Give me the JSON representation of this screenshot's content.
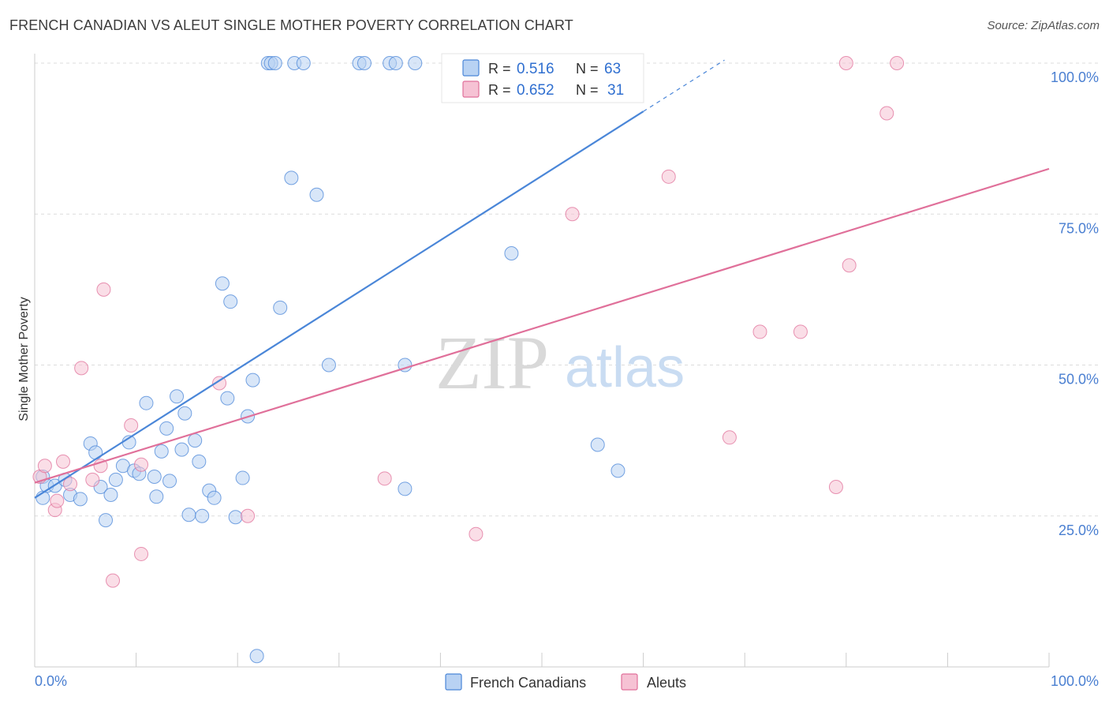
{
  "title": "FRENCH CANADIAN VS ALEUT SINGLE MOTHER POVERTY CORRELATION CHART",
  "source": "Source: ZipAtlas.com",
  "watermark": {
    "zip": "ZIP",
    "atlas": "atlas"
  },
  "colors": {
    "blue": "#4a86d8",
    "blue_fill": "#b8d2f3",
    "pink": "#e0709a",
    "pink_fill": "#f6c2d4",
    "tick_label": "#4a7fd1"
  },
  "chart_data": {
    "type": "scatter",
    "title": "FRENCH CANADIAN VS ALEUT SINGLE MOTHER POVERTY CORRELATION CHART",
    "xlabel": "",
    "ylabel": "Single Mother Poverty",
    "xlim": [
      0,
      100
    ],
    "ylim": [
      0,
      100
    ],
    "x_tick_labels": [
      "0.0%",
      "100.0%"
    ],
    "y_ticks": [
      25,
      50,
      75,
      100
    ],
    "y_tick_labels": [
      "25.0%",
      "50.0%",
      "75.0%",
      "100.0%"
    ],
    "grid": true,
    "legend_placement": "top-center",
    "legend": [
      {
        "r_label": "R =",
        "r_value": "0.516",
        "n_label": "N =",
        "n_value": "63"
      },
      {
        "r_label": "R =",
        "r_value": "0.652",
        "n_label": "N =",
        "n_value": "31"
      }
    ],
    "series": [
      {
        "name": "French Canadians",
        "color": "#4a86d8",
        "trendline": {
          "x0": 0,
          "y0": 28,
          "x1": 60,
          "y1": 92,
          "dashed_to_x": 68,
          "dashed_to_y": 100.5
        },
        "points": [
          [
            0.8,
            31.5
          ],
          [
            0.8,
            28
          ],
          [
            1.2,
            30
          ],
          [
            2,
            30
          ],
          [
            3,
            31
          ],
          [
            3.5,
            28.5
          ],
          [
            4.5,
            27.8
          ],
          [
            5.5,
            37
          ],
          [
            6,
            35.5
          ],
          [
            6.5,
            29.8
          ],
          [
            7,
            24.3
          ],
          [
            7.5,
            28.5
          ],
          [
            8,
            31
          ],
          [
            8.7,
            33.3
          ],
          [
            9.3,
            37.2
          ],
          [
            9.8,
            32.5
          ],
          [
            10.3,
            32
          ],
          [
            11,
            43.7
          ],
          [
            11.8,
            31.5
          ],
          [
            12,
            28.2
          ],
          [
            12.5,
            35.7
          ],
          [
            13,
            39.5
          ],
          [
            13.3,
            30.8
          ],
          [
            14,
            44.8
          ],
          [
            14.8,
            42
          ],
          [
            14.5,
            36
          ],
          [
            15.2,
            25.2
          ],
          [
            15.8,
            37.5
          ],
          [
            16.5,
            25
          ],
          [
            16.2,
            34
          ],
          [
            17.2,
            29.2
          ],
          [
            17.7,
            28
          ],
          [
            18.5,
            63.5
          ],
          [
            19,
            44.5
          ],
          [
            19.3,
            60.5
          ],
          [
            19.8,
            24.8
          ],
          [
            20.5,
            31.3
          ],
          [
            21,
            41.5
          ],
          [
            21.5,
            47.5
          ],
          [
            21.9,
            1.8
          ],
          [
            23,
            100
          ],
          [
            23.3,
            100
          ],
          [
            23.7,
            100
          ],
          [
            24.2,
            59.5
          ],
          [
            25.3,
            81
          ],
          [
            25.6,
            100
          ],
          [
            26.5,
            100
          ],
          [
            27.8,
            78.2
          ],
          [
            29,
            50
          ],
          [
            32,
            100
          ],
          [
            32.5,
            100
          ],
          [
            35,
            100
          ],
          [
            35.6,
            100
          ],
          [
            36.5,
            50
          ],
          [
            36.5,
            29.5
          ],
          [
            37.5,
            100
          ],
          [
            47,
            68.5
          ],
          [
            55.5,
            36.8
          ],
          [
            57.5,
            32.5
          ]
        ]
      },
      {
        "name": "Aleuts",
        "color": "#e0709a",
        "trendline": {
          "x0": 0,
          "y0": 30.5,
          "x1": 100,
          "y1": 82.5
        },
        "points": [
          [
            0.5,
            31.5
          ],
          [
            1,
            33.3
          ],
          [
            2,
            26
          ],
          [
            2.2,
            27.5
          ],
          [
            2.8,
            34
          ],
          [
            3.5,
            30.3
          ],
          [
            4.6,
            49.5
          ],
          [
            5.7,
            31
          ],
          [
            6.5,
            33.3
          ],
          [
            6.8,
            62.5
          ],
          [
            7.7,
            14.3
          ],
          [
            9.5,
            40
          ],
          [
            10.5,
            33.5
          ],
          [
            10.5,
            18.7
          ],
          [
            18.2,
            47
          ],
          [
            21,
            25
          ],
          [
            34.5,
            31.2
          ],
          [
            43.5,
            22
          ],
          [
            53,
            75
          ],
          [
            62.5,
            81.2
          ],
          [
            68.5,
            38
          ],
          [
            71.5,
            55.5
          ],
          [
            75.5,
            55.5
          ],
          [
            79,
            29.8
          ],
          [
            80,
            100
          ],
          [
            80.3,
            66.5
          ],
          [
            84,
            91.7
          ],
          [
            85,
            100
          ]
        ]
      }
    ]
  }
}
